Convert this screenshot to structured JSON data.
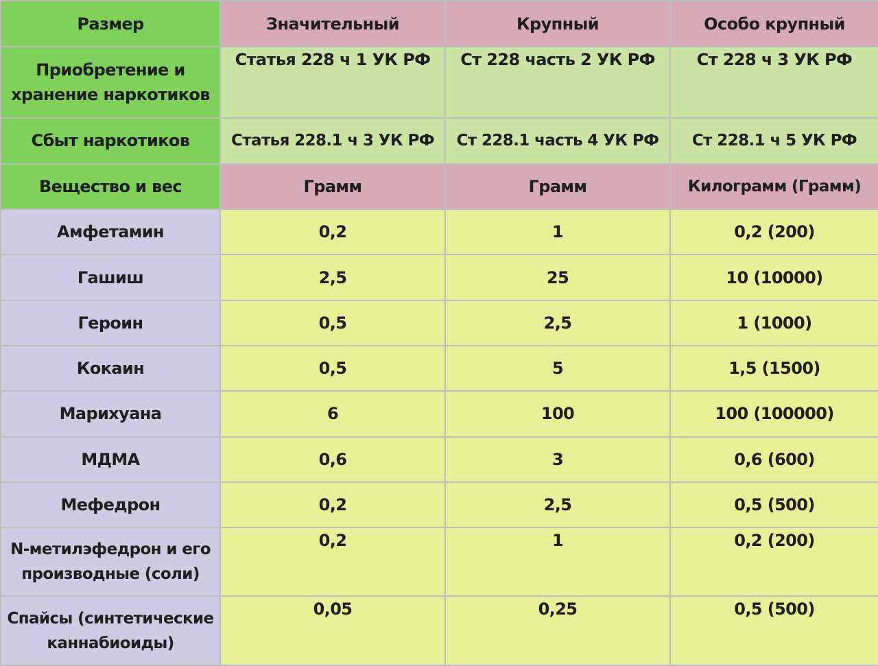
{
  "header": {
    "size": "Размер",
    "significant": "Значительный",
    "large": "Крупный",
    "extra_large": "Особо крупный"
  },
  "acquisition": {
    "label": "Приобретение и хранение наркотиков",
    "significant": "Статья 228 ч 1 УК  РФ",
    "large": "Ст 228 часть 2 УК РФ",
    "extra_large": "Ст 228 ч 3 УК РФ"
  },
  "sale": {
    "label": "Сбыт наркотиков",
    "significant": "Статья 228.1 ч 3 УК РФ",
    "large": "Ст 228.1 часть 4 УК РФ",
    "extra_large": "Ст 228.1 ч 5 УК РФ"
  },
  "units": {
    "label": "Вещество и вес",
    "significant": "Грамм",
    "large": "Грамм",
    "extra_large": "Килограмм (Грамм)"
  },
  "substances": [
    {
      "name": "Амфетамин",
      "significant": "0,2",
      "large": "1",
      "extra_large": "0,2 (200)"
    },
    {
      "name": "Гашиш",
      "significant": "2,5",
      "large": "25",
      "extra_large": "10 (10000)"
    },
    {
      "name": "Героин",
      "significant": "0,5",
      "large": "2,5",
      "extra_large": "1 (1000)"
    },
    {
      "name": "Кокаин",
      "significant": "0,5",
      "large": "5",
      "extra_large": "1,5 (1500)"
    },
    {
      "name": "Марихуана",
      "significant": "6",
      "large": "100",
      "extra_large": "100 (100000)"
    },
    {
      "name": "МДМА",
      "significant": "0,6",
      "large": "3",
      "extra_large": "0,6 (600)"
    },
    {
      "name": "Мефедрон",
      "significant": "0,2",
      "large": "2,5",
      "extra_large": "0,5 (500)"
    },
    {
      "name": "N-метилэфедрон и его производные (соли)",
      "significant": "0,2",
      "large": "1",
      "extra_large": "0,2 (200)"
    },
    {
      "name": "Спайсы (синтетические каннабиоиды)",
      "significant": "0,05",
      "large": "0,25",
      "extra_large": "0,5 (500)"
    }
  ],
  "colors": {
    "label_green": "#7fd15a",
    "header_pink": "#d7aab8",
    "article_green": "#c9e4a3",
    "substance_lavender": "#cfcbe3",
    "value_yellow": "#e6f096",
    "grid_line": "#bdbdbd"
  }
}
